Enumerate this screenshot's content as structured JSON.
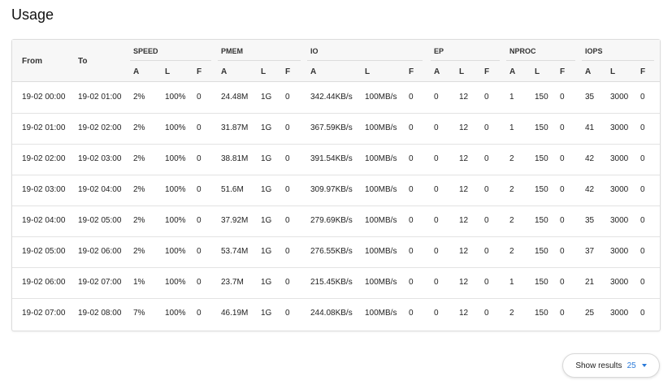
{
  "page": {
    "title": "Usage"
  },
  "table": {
    "from_label": "From",
    "to_label": "To",
    "groups": [
      "SPEED",
      "PMEM",
      "IO",
      "EP",
      "NPROC",
      "IOPS"
    ],
    "subcols": [
      "A",
      "L",
      "F"
    ],
    "rows": [
      [
        "19-02 00:00",
        "19-02 01:00",
        "2%",
        "100%",
        "0",
        "24.48M",
        "1G",
        "0",
        "342.44KB/s",
        "100MB/s",
        "0",
        "0",
        "12",
        "0",
        "1",
        "150",
        "0",
        "35",
        "3000",
        "0"
      ],
      [
        "19-02 01:00",
        "19-02 02:00",
        "2%",
        "100%",
        "0",
        "31.87M",
        "1G",
        "0",
        "367.59KB/s",
        "100MB/s",
        "0",
        "0",
        "12",
        "0",
        "1",
        "150",
        "0",
        "41",
        "3000",
        "0"
      ],
      [
        "19-02 02:00",
        "19-02 03:00",
        "2%",
        "100%",
        "0",
        "38.81M",
        "1G",
        "0",
        "391.54KB/s",
        "100MB/s",
        "0",
        "0",
        "12",
        "0",
        "2",
        "150",
        "0",
        "42",
        "3000",
        "0"
      ],
      [
        "19-02 03:00",
        "19-02 04:00",
        "2%",
        "100%",
        "0",
        "51.6M",
        "1G",
        "0",
        "309.97KB/s",
        "100MB/s",
        "0",
        "0",
        "12",
        "0",
        "2",
        "150",
        "0",
        "42",
        "3000",
        "0"
      ],
      [
        "19-02 04:00",
        "19-02 05:00",
        "2%",
        "100%",
        "0",
        "37.92M",
        "1G",
        "0",
        "279.69KB/s",
        "100MB/s",
        "0",
        "0",
        "12",
        "0",
        "2",
        "150",
        "0",
        "35",
        "3000",
        "0"
      ],
      [
        "19-02 05:00",
        "19-02 06:00",
        "2%",
        "100%",
        "0",
        "53.74M",
        "1G",
        "0",
        "276.55KB/s",
        "100MB/s",
        "0",
        "0",
        "12",
        "0",
        "2",
        "150",
        "0",
        "37",
        "3000",
        "0"
      ],
      [
        "19-02 06:00",
        "19-02 07:00",
        "1%",
        "100%",
        "0",
        "23.7M",
        "1G",
        "0",
        "215.45KB/s",
        "100MB/s",
        "0",
        "0",
        "12",
        "0",
        "1",
        "150",
        "0",
        "21",
        "3000",
        "0"
      ],
      [
        "19-02 07:00",
        "19-02 08:00",
        "7%",
        "100%",
        "0",
        "46.19M",
        "1G",
        "0",
        "244.08KB/s",
        "100MB/s",
        "0",
        "0",
        "12",
        "0",
        "2",
        "150",
        "0",
        "25",
        "3000",
        "0"
      ]
    ]
  },
  "pagination": {
    "label": "Show results",
    "value": "25",
    "caret_icon": "chevron-down-icon"
  },
  "colors": {
    "accent": "#2a7ad9"
  }
}
